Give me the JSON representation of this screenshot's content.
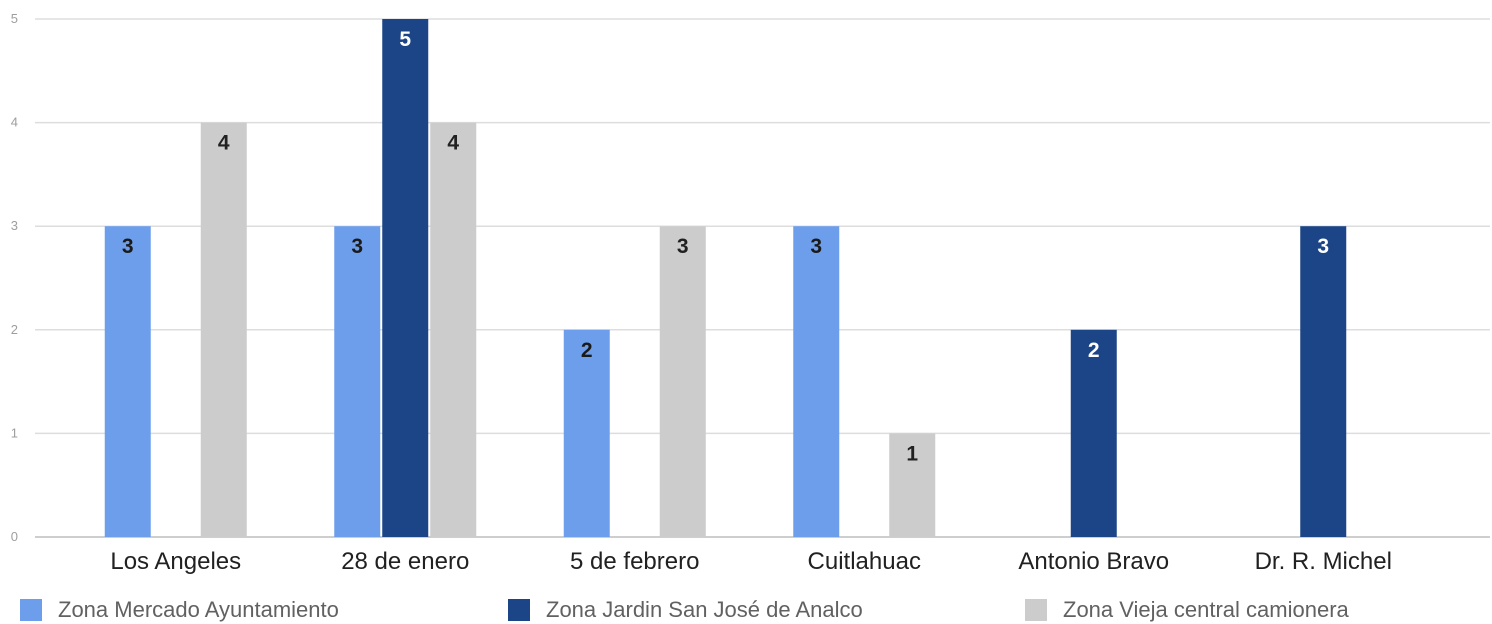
{
  "chart_data": {
    "type": "bar",
    "categories": [
      "Los Angeles",
      "28 de enero",
      "5 de febrero",
      "Cuitlahuac",
      "Antonio Bravo",
      "Dr. R. Michel"
    ],
    "series": [
      {
        "name": "Zona Mercado Ayuntamiento",
        "color": "#6d9eeb",
        "values": [
          3,
          3,
          2,
          3,
          null,
          null
        ]
      },
      {
        "name": "Zona Jardin San José de Analco",
        "color": "#1c4587",
        "values": [
          null,
          5,
          null,
          null,
          2,
          3
        ]
      },
      {
        "name": "Zona Vieja central camionera",
        "color": "#cccccc",
        "values": [
          4,
          4,
          3,
          1,
          null,
          null
        ]
      }
    ],
    "yticks": [
      "0",
      "1",
      "2",
      "3",
      "4",
      "5"
    ],
    "ylim": [
      0,
      5
    ],
    "grid": true,
    "legend_position": "bottom"
  }
}
